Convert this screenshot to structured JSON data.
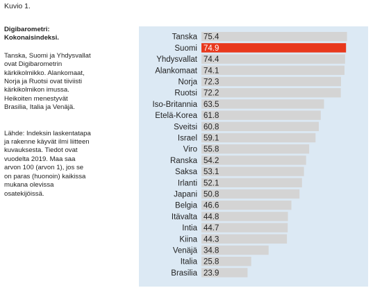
{
  "figure_label": "Kuvio 1.",
  "sidebar": {
    "title_line1": "Digibarometri:",
    "title_line2": "Kokonaisindeksi.",
    "description": [
      "Tanska, Suomi ja Yhdysvallat",
      "ovat Digibarometrin",
      "kärkikolmikko. Alankomaat,",
      "Norja ja Ruotsi ovat tiiviisti",
      "kärkikolmikon imussa.",
      "Heikoiten menestyvät",
      "Brasilia, Italia ja Venäjä."
    ],
    "source": [
      "Lähde: Indeksin laskentatapa",
      "ja rakenne käyvät ilmi liitteen",
      "kuvauksesta. Tiedot ovat",
      "vuodelta 2019. Maa saa",
      "arvon 100 (arvon 1), jos se",
      "on paras (huonoin) kaikissa",
      "mukana olevissa",
      "osatekijöissä."
    ]
  },
  "colors": {
    "panel_background": "#dce9f4",
    "bar_default": "#d4d4d4",
    "bar_highlight": "#e8381c",
    "label_highlight": "#ffffff",
    "label_default": "#222222"
  },
  "chart_data": {
    "type": "bar",
    "orientation": "horizontal",
    "title": "",
    "xlabel": "",
    "ylabel": "",
    "xlim": [
      0,
      100
    ],
    "grid": false,
    "legend": "none",
    "highlight_category": "Suomi",
    "categories": [
      "Tanska",
      "Suomi",
      "Yhdysvallat",
      "Alankomaat",
      "Norja",
      "Ruotsi",
      "Iso-Britannia",
      "Etelä-Korea",
      "Sveitsi",
      "Israel",
      "Viro",
      "Ranska",
      "Saksa",
      "Irlanti",
      "Japani",
      "Belgia",
      "Itävalta",
      "Intia",
      "Kiina",
      "Venäjä",
      "Italia",
      "Brasilia"
    ],
    "values": [
      75.4,
      74.9,
      74.4,
      74.1,
      72.3,
      72.2,
      63.5,
      61.8,
      60.8,
      59.1,
      55.8,
      54.2,
      53.1,
      52.1,
      50.8,
      46.6,
      44.8,
      44.7,
      44.3,
      34.8,
      25.8,
      23.9
    ],
    "value_labels": [
      "75.4",
      "74.9",
      "74.4",
      "74.1",
      "72.3",
      "72.2",
      "63.5",
      "61.8",
      "60.8",
      "59.1",
      "55.8",
      "54.2",
      "53.1",
      "52.1",
      "50.8",
      "46.6",
      "44.8",
      "44.7",
      "44.3",
      "34.8",
      "25.8",
      "23.9"
    ]
  }
}
